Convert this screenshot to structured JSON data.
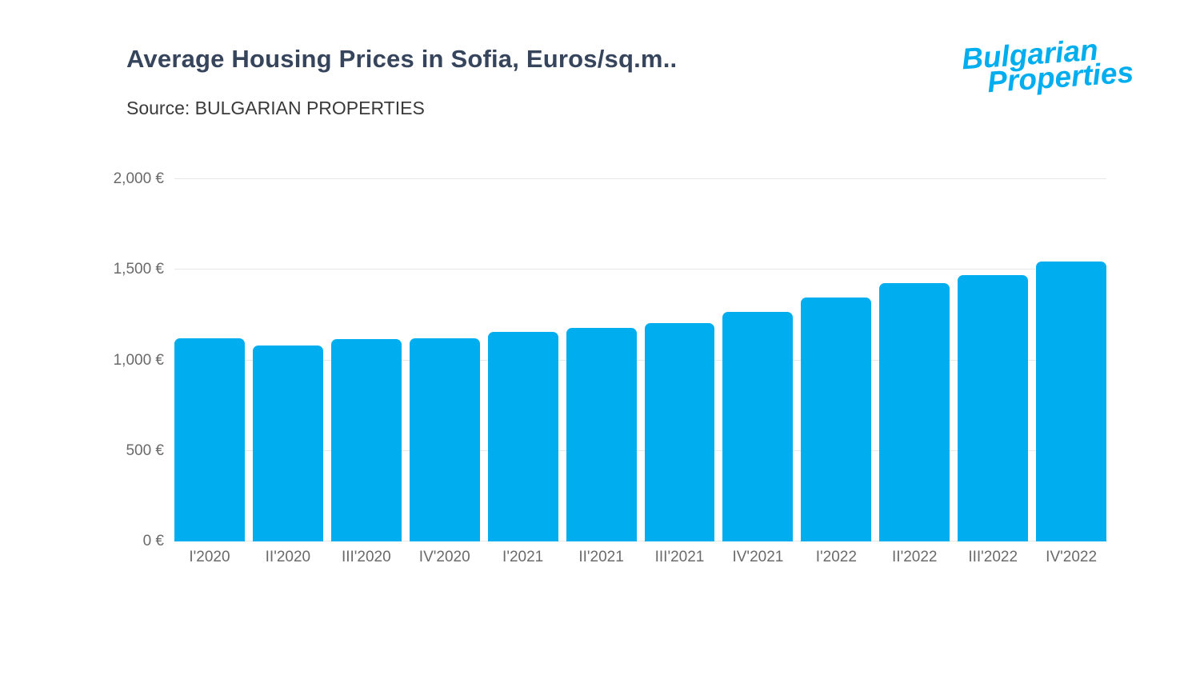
{
  "header": {
    "title": "Average Housing Prices in Sofia, Euros/sq.m..",
    "source": "Source: BULGARIAN PROPERTIES",
    "logo": {
      "line1": "Bulgarian",
      "line2": "Properties"
    }
  },
  "colors": {
    "bar": "#00AEF0",
    "brand": "#00AEF0",
    "title": "#36455C",
    "grid": "#E7E7E7",
    "axis_text": "#6A6A6A"
  },
  "chart_data": {
    "type": "bar",
    "title": "Average Housing Prices in Sofia, Euros/sq.m..",
    "subtitle": "Source: BULGARIAN PROPERTIES",
    "categories": [
      "I'2020",
      "II'2020",
      "III'2020",
      "IV'2020",
      "I'2021",
      "II'2021",
      "III'2021",
      "IV'2021",
      "I'2022",
      "II'2022",
      "III'2022",
      "IV'2022"
    ],
    "values": [
      1120,
      1080,
      1115,
      1120,
      1155,
      1180,
      1205,
      1265,
      1345,
      1425,
      1470,
      1545
    ],
    "xlabel": "",
    "ylabel": "Euros/sq.m.",
    "ylim": [
      0,
      2000
    ],
    "yticks": [
      {
        "value": 0,
        "label": "0 €"
      },
      {
        "value": 500,
        "label": "500 €"
      },
      {
        "value": 1000,
        "label": "1,000 €"
      },
      {
        "value": 1500,
        "label": "1,500 €"
      },
      {
        "value": 2000,
        "label": "2,000 €"
      }
    ],
    "grid": true,
    "legend": "none"
  }
}
